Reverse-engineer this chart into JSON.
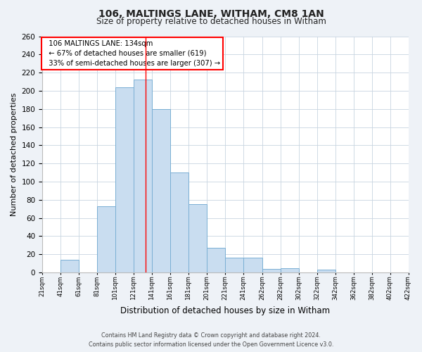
{
  "title": "106, MALTINGS LANE, WITHAM, CM8 1AN",
  "subtitle": "Size of property relative to detached houses in Witham",
  "xlabel": "Distribution of detached houses by size in Witham",
  "ylabel": "Number of detached properties",
  "bin_edges": [
    21,
    41,
    61,
    81,
    101,
    121,
    141,
    161,
    181,
    201,
    221,
    241,
    262,
    282,
    302,
    322,
    342,
    362,
    382,
    402,
    422
  ],
  "values": [
    0,
    14,
    0,
    73,
    204,
    212,
    180,
    110,
    75,
    27,
    16,
    16,
    4,
    5,
    0,
    3,
    0,
    0,
    0,
    0
  ],
  "bar_color": "#c9ddf0",
  "bar_edge_color": "#7aafd4",
  "red_line_x": 134,
  "annotation_title": "106 MALTINGS LANE: 134sqm",
  "annotation_line1": "← 67% of detached houses are smaller (619)",
  "annotation_line2": "33% of semi-detached houses are larger (307) →",
  "ylim": [
    0,
    260
  ],
  "yticks": [
    0,
    20,
    40,
    60,
    80,
    100,
    120,
    140,
    160,
    180,
    200,
    220,
    240,
    260
  ],
  "xlim_left": 21,
  "xlim_right": 422,
  "tick_labels": [
    "21sqm",
    "41sqm",
    "61sqm",
    "81sqm",
    "101sqm",
    "121sqm",
    "141sqm",
    "161sqm",
    "181sqm",
    "201sqm",
    "221sqm",
    "241sqm",
    "262sqm",
    "282sqm",
    "302sqm",
    "322sqm",
    "342sqm",
    "362sqm",
    "382sqm",
    "402sqm",
    "422sqm"
  ],
  "tick_positions": [
    21,
    41,
    61,
    81,
    101,
    121,
    141,
    161,
    181,
    201,
    221,
    241,
    262,
    282,
    302,
    322,
    342,
    362,
    382,
    402,
    422
  ],
  "footer_line1": "Contains HM Land Registry data © Crown copyright and database right 2024.",
  "footer_line2": "Contains public sector information licensed under the Open Government Licence v3.0.",
  "background_color": "#eef2f7",
  "plot_bg_color": "#ffffff",
  "grid_color": "#c8d4e0"
}
